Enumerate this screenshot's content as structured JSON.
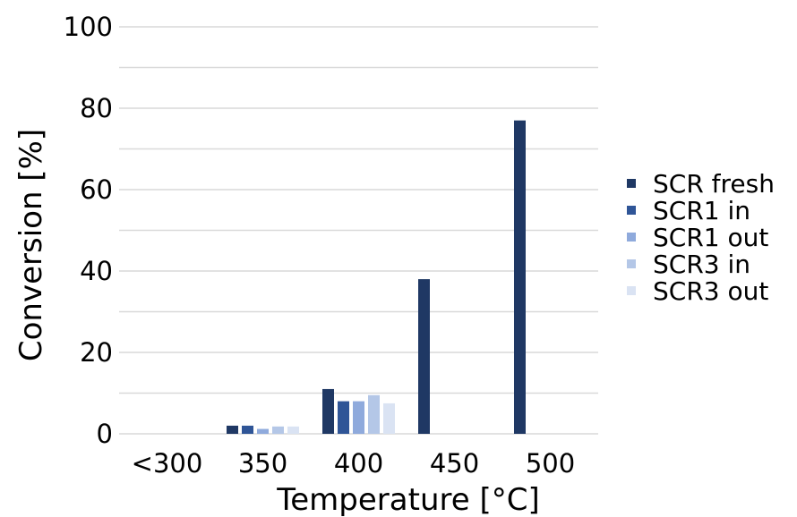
{
  "chart_data": {
    "type": "bar",
    "title": "",
    "xlabel": "Temperature [°C]",
    "ylabel": "Conversion [%]",
    "ylim": [
      0,
      100
    ],
    "yticks": [
      0,
      20,
      40,
      60,
      80,
      100
    ],
    "categories": [
      "<300",
      "350",
      "400",
      "450",
      "500"
    ],
    "series": [
      {
        "name": "SCR fresh",
        "color": "#1f3864",
        "values": [
          0,
          2,
          11,
          38,
          77
        ]
      },
      {
        "name": "SCR1 in",
        "color": "#2f5597",
        "values": [
          0,
          2,
          8,
          0,
          0
        ]
      },
      {
        "name": "SCR1 out",
        "color": "#8faadc",
        "values": [
          0,
          1.2,
          8,
          0,
          0
        ]
      },
      {
        "name": "SCR3 in",
        "color": "#b4c7e7",
        "values": [
          0,
          1.8,
          9.5,
          0,
          0
        ]
      },
      {
        "name": "SCR3 out",
        "color": "#dae3f3",
        "values": [
          0,
          1.8,
          7.5,
          0,
          0
        ]
      }
    ],
    "grid": true,
    "minor_grid": true,
    "legend_position": "right"
  }
}
